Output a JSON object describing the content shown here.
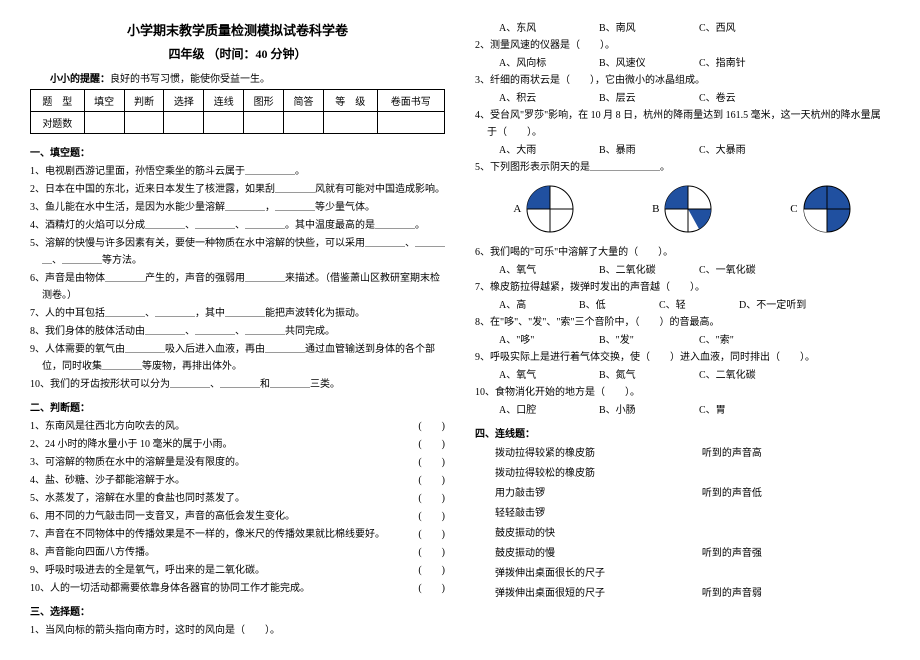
{
  "header": {
    "title": "小学期末教学质量检测模拟试卷科学卷",
    "subtitle": "四年级  （时间：40 分钟）",
    "tip_bold": "小小的提醒：",
    "tip_text": "良好的书写习惯，能使你受益一生。"
  },
  "score_table": {
    "row1": [
      "题　型",
      "填空",
      "判断",
      "选择",
      "连线",
      "图形",
      "简答",
      "等　级",
      "卷面书写"
    ],
    "row2_label": "对题数"
  },
  "s1": {
    "title": "一、填空题：",
    "q1": "1、电视剧西游记里面，孙悟空乘坐的筋斗云属于＿＿＿＿＿。",
    "q2": "2、日本在中国的东北，近来日本发生了核泄露，如果刮＿＿＿＿风就有可能对中国造成影响。",
    "q3": "3、鱼儿能在水中生活，是因为水能少量溶解＿＿＿＿，＿＿＿＿等少量气体。",
    "q4": "4、酒精灯的火焰可以分成＿＿＿＿、＿＿＿＿、＿＿＿＿。其中温度最高的是＿＿＿＿。",
    "q5": "5、溶解的快慢与许多因素有关，要使一种物质在水中溶解的快些，可以采用＿＿＿＿、＿＿＿＿、＿＿＿＿等方法。",
    "q6a": "6、声音是由物体＿＿＿＿产生的，声音的强弱用＿＿＿＿来描述。（借鉴萧山区教研室期末检测卷。）",
    "q7": "7、人的中耳包括＿＿＿＿、＿＿＿＿，其中＿＿＿＿能把声波转化为振动。",
    "q8": "8、我们身体的肢体活动由＿＿＿＿、＿＿＿＿、＿＿＿＿共同完成。",
    "q9a": "9、人体需要的氧气由＿＿＿＿吸入后进入血液，再由＿＿＿＿通过血管输送到身体的各个部位，同时收集＿＿＿＿等废物，再排出体外。",
    "q10": "10、我们的牙齿按形状可以分为＿＿＿＿、＿＿＿＿和＿＿＿＿三类。"
  },
  "s2": {
    "title": "二、判断题：",
    "items": [
      "1、东南风是往西北方向吹去的风。",
      "2、24 小时的降水量小于 10 毫米的属于小雨。",
      "3、可溶解的物质在水中的溶解量是没有限度的。",
      "4、盐、砂糖、沙子都能溶解于水。",
      "5、水蒸发了，溶解在水里的食盐也同时蒸发了。",
      "6、用不同的力气敲击同一支音叉，声音的高低会发生变化。",
      "7、声音在不同物体中的传播效果是不一样的，像米尺的传播效果就比棉线要好。",
      "8、声音能向四面八方传播。",
      "9、呼吸时吸进去的全是氧气，呼出来的是二氧化碳。",
      "10、人的一切活动都需要依靠身体各器官的协同工作才能完成。"
    ]
  },
  "s3": {
    "title": "三、选择题：",
    "q1": {
      "stem": "1、当风向标的箭头指向南方时，这时的风向是（　　）。",
      "opts": [
        "A、东风",
        "B、南风",
        "C、西风"
      ]
    },
    "q2": {
      "stem": "2、测量风速的仪器是（　　）。",
      "opts": [
        "A、风向标",
        "B、风速仪",
        "C、指南针"
      ]
    },
    "q3": {
      "stem": "3、纤细的雨状云是（　　），它由微小的冰晶组成。",
      "opts": [
        "A、积云",
        "B、层云",
        "C、卷云"
      ]
    },
    "q4": {
      "stem": "4、受台风\"罗莎\"影响，在 10 月 8 日，杭州的降雨量达到 161.5 毫米，这一天杭州的降水量属于（　　）。",
      "opts": [
        "A、大雨",
        "B、暴雨",
        "C、大暴雨"
      ]
    },
    "q5": {
      "stem": "5、下列图形表示阴天的是＿＿＿＿＿＿＿。"
    },
    "pie_labels": [
      "A",
      "B",
      "C"
    ],
    "pie_bg": "#ffffff",
    "pie_fill": "#2050a0",
    "pie_stroke": "#000000",
    "q6": {
      "stem": "6、我们喝的\"可乐\"中溶解了大量的（　　）。",
      "opts": [
        "A、氧气",
        "B、二氧化碳",
        "C、一氧化碳"
      ]
    },
    "q7": {
      "stem": "7、橡皮筋拉得越紧，拨弹时发出的声音越（　　）。",
      "opts": [
        "A、高",
        "B、低",
        "C、轻",
        "D、不一定听到"
      ]
    },
    "q8": {
      "stem": "8、在\"哆\"、\"发\"、\"索\"三个音阶中，（　　）的音最高。",
      "opts": [
        "A、\"哆\"",
        "B、\"发\"",
        "C、\"索\""
      ]
    },
    "q9": {
      "stem": "9、呼吸实际上是进行着气体交换，使（　　）进入血液，同时排出（　　）。",
      "opts": [
        "A、氧气",
        "B、氮气",
        "C、二氧化碳"
      ]
    },
    "q10": {
      "stem": "10、食物消化开始的地方是（　　）。",
      "opts": [
        "A、口腔",
        "B、小肠",
        "C、胃"
      ]
    }
  },
  "s4": {
    "title": "四、连线题：",
    "left": [
      "拨动拉得较紧的橡皮筋",
      "拨动拉得较松的橡皮筋",
      "用力敲击锣",
      "轻轻敲击锣",
      "鼓皮振动的快",
      "鼓皮振动的慢",
      "弹拨伸出桌面很长的尺子",
      "弹拨伸出桌面很短的尺子"
    ],
    "right": [
      "听到的声音高",
      "听到的声音低",
      "听到的声音强",
      "听到的声音弱"
    ]
  }
}
